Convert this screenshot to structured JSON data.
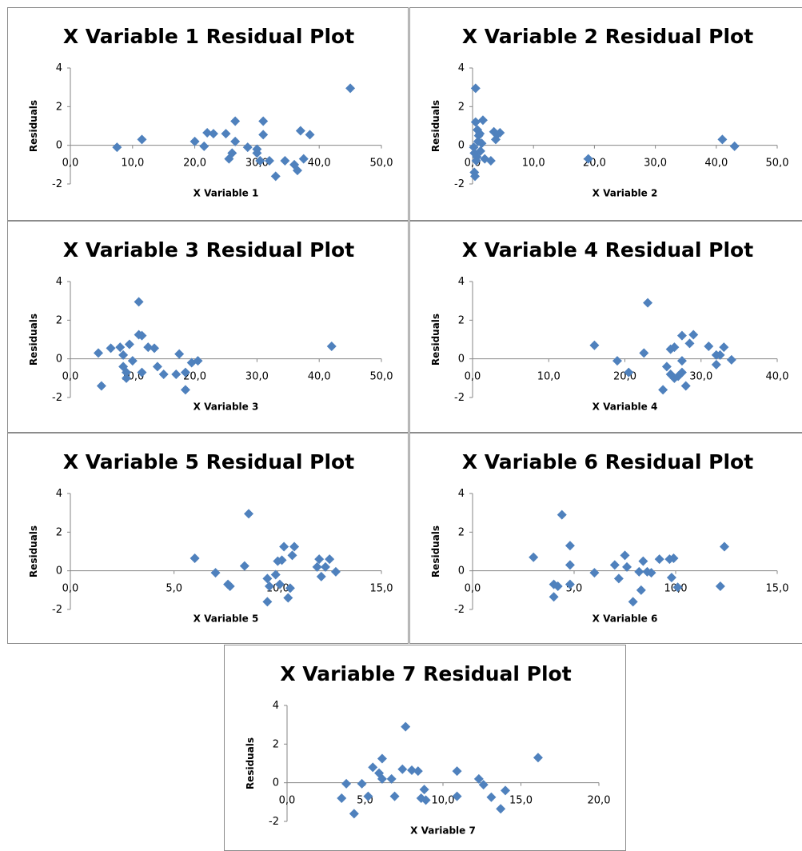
{
  "chart_data": [
    {
      "type": "scatter",
      "title": "X Variable 1  Residual Plot",
      "xlabel": "X Variable  1",
      "ylabel": "Residuals",
      "xlim": [
        0,
        50
      ],
      "ylim": [
        -2,
        4
      ],
      "x_ticks": [
        "0,0",
        "10,0",
        "20,0",
        "30,0",
        "40,0",
        "50,0"
      ],
      "y_ticks": [
        "-2",
        "0",
        "2",
        "4"
      ],
      "grid": false,
      "legend": "none",
      "color": "#4f81bd",
      "points": [
        [
          7.5,
          -0.1
        ],
        [
          11.5,
          0.3
        ],
        [
          20,
          0.2
        ],
        [
          21.5,
          -0.05
        ],
        [
          22,
          0.65
        ],
        [
          23,
          0.6
        ],
        [
          25,
          0.6
        ],
        [
          25.5,
          -0.7
        ],
        [
          26,
          -0.4
        ],
        [
          26.5,
          1.25
        ],
        [
          26.5,
          0.2
        ],
        [
          28.5,
          -0.1
        ],
        [
          30,
          -0.2
        ],
        [
          30,
          -0.4
        ],
        [
          30.5,
          -0.8
        ],
        [
          31,
          1.25
        ],
        [
          31,
          0.55
        ],
        [
          32,
          -0.8
        ],
        [
          33,
          -1.6
        ],
        [
          34.5,
          -0.8
        ],
        [
          36,
          -1.0
        ],
        [
          36.5,
          -1.3
        ],
        [
          37,
          0.75
        ],
        [
          37.5,
          -0.7
        ],
        [
          38.5,
          0.55
        ],
        [
          45,
          2.95
        ]
      ]
    },
    {
      "type": "scatter",
      "title": "X Variable 2  Residual Plot",
      "xlabel": "X Variable  2",
      "ylabel": "Residuals",
      "xlim": [
        0,
        50
      ],
      "ylim": [
        -2,
        4
      ],
      "x_ticks": [
        "0,0",
        "10,0",
        "20,0",
        "30,0",
        "40,0",
        "50,0"
      ],
      "y_ticks": [
        "-2",
        "0",
        "2",
        "4"
      ],
      "grid": false,
      "legend": "none",
      "color": "#4f81bd",
      "points": [
        [
          0.2,
          -0.1
        ],
        [
          0.3,
          -0.4
        ],
        [
          0.3,
          -1.4
        ],
        [
          0.4,
          -1.6
        ],
        [
          0.5,
          1.2
        ],
        [
          0.5,
          2.95
        ],
        [
          0.6,
          -0.8
        ],
        [
          0.7,
          -0.6
        ],
        [
          0.8,
          0.8
        ],
        [
          0.9,
          0.2
        ],
        [
          1,
          0.5
        ],
        [
          1.2,
          0.6
        ],
        [
          1.3,
          -0.3
        ],
        [
          1.5,
          0.1
        ],
        [
          1.7,
          1.3
        ],
        [
          2,
          -0.7
        ],
        [
          3,
          -0.8
        ],
        [
          3.5,
          0.7
        ],
        [
          3.8,
          0.3
        ],
        [
          4,
          0.55
        ],
        [
          4.5,
          0.65
        ],
        [
          19,
          -0.7
        ],
        [
          41,
          0.3
        ],
        [
          43,
          -0.05
        ]
      ]
    },
    {
      "type": "scatter",
      "title": "X Variable 3  Residual Plot",
      "xlabel": "X Variable  3",
      "ylabel": "Residuals",
      "xlim": [
        0,
        50
      ],
      "ylim": [
        -2,
        4
      ],
      "x_ticks": [
        "0,0",
        "10,0",
        "20,0",
        "30,0",
        "40,0",
        "50,0"
      ],
      "y_ticks": [
        "-2",
        "0",
        "2",
        "4"
      ],
      "grid": false,
      "legend": "none",
      "color": "#4f81bd",
      "points": [
        [
          4.5,
          0.3
        ],
        [
          5,
          -1.4
        ],
        [
          6.5,
          0.55
        ],
        [
          8,
          0.6
        ],
        [
          8.5,
          0.2
        ],
        [
          8.5,
          -0.4
        ],
        [
          9,
          -1
        ],
        [
          9,
          -0.7
        ],
        [
          9.5,
          0.75
        ],
        [
          10,
          -0.1
        ],
        [
          11,
          1.25
        ],
        [
          11,
          2.95
        ],
        [
          11.5,
          1.2
        ],
        [
          11.5,
          -0.7
        ],
        [
          12.5,
          0.6
        ],
        [
          13.5,
          0.55
        ],
        [
          14,
          -0.4
        ],
        [
          15,
          -0.8
        ],
        [
          17,
          -0.8
        ],
        [
          17.5,
          0.25
        ],
        [
          18.5,
          -0.7
        ],
        [
          18.5,
          -1.6
        ],
        [
          19.5,
          -0.2
        ],
        [
          20.5,
          -0.1
        ],
        [
          42,
          0.65
        ]
      ]
    },
    {
      "type": "scatter",
      "title": "X Variable 4  Residual Plot",
      "xlabel": "X Variable  4",
      "ylabel": "Residuals",
      "xlim": [
        0,
        40
      ],
      "ylim": [
        -2,
        4
      ],
      "x_ticks": [
        "0,0",
        "10,0",
        "20,0",
        "30,0",
        "40,0"
      ],
      "y_ticks": [
        "-2",
        "0",
        "2",
        "4"
      ],
      "grid": false,
      "legend": "none",
      "color": "#4f81bd",
      "points": [
        [
          16,
          0.7
        ],
        [
          19,
          -0.1
        ],
        [
          20.5,
          -0.7
        ],
        [
          22.5,
          0.3
        ],
        [
          23,
          2.9
        ],
        [
          25,
          -1.6
        ],
        [
          25.5,
          -0.4
        ],
        [
          26,
          -0.8
        ],
        [
          26,
          0.5
        ],
        [
          26.5,
          -1.0
        ],
        [
          26.5,
          0.6
        ],
        [
          27,
          -0.9
        ],
        [
          27.5,
          -0.7
        ],
        [
          27.5,
          -0.1
        ],
        [
          27.5,
          1.2
        ],
        [
          28,
          -1.4
        ],
        [
          28.5,
          0.8
        ],
        [
          29,
          1.25
        ],
        [
          31,
          0.65
        ],
        [
          32,
          0.2
        ],
        [
          32,
          -0.3
        ],
        [
          32.5,
          0.2
        ],
        [
          33,
          0.6
        ],
        [
          34,
          -0.05
        ]
      ]
    },
    {
      "type": "scatter",
      "title": "X Variable 5  Residual Plot",
      "xlabel": "X Variable  5",
      "ylabel": "Residuals",
      "xlim": [
        0,
        15
      ],
      "ylim": [
        -2,
        4
      ],
      "x_ticks": [
        "0,0",
        "5,0",
        "10,0",
        "15,0"
      ],
      "y_ticks": [
        "-2",
        "0",
        "2",
        "4"
      ],
      "grid": false,
      "legend": "none",
      "color": "#4f81bd",
      "points": [
        [
          6,
          0.65
        ],
        [
          7,
          -0.1
        ],
        [
          7.6,
          -0.7
        ],
        [
          7.7,
          -0.8
        ],
        [
          8.4,
          0.25
        ],
        [
          8.6,
          2.95
        ],
        [
          9.5,
          -0.4
        ],
        [
          9.5,
          -1.6
        ],
        [
          9.6,
          -0.8
        ],
        [
          9.9,
          -0.2
        ],
        [
          10,
          0.5
        ],
        [
          10.1,
          -0.7
        ],
        [
          10.2,
          0.55
        ],
        [
          10.3,
          1.25
        ],
        [
          10.5,
          -1.4
        ],
        [
          10.6,
          -0.9
        ],
        [
          10.7,
          0.8
        ],
        [
          10.8,
          1.25
        ],
        [
          11.9,
          0.2
        ],
        [
          12,
          0.6
        ],
        [
          12.1,
          -0.3
        ],
        [
          12.3,
          0.2
        ],
        [
          12.5,
          0.6
        ],
        [
          12.8,
          -0.05
        ]
      ]
    },
    {
      "type": "scatter",
      "title": "X Variable 6  Residual Plot",
      "xlabel": "X Variable  6",
      "ylabel": "Residuals",
      "xlim": [
        0,
        15
      ],
      "ylim": [
        -2,
        4
      ],
      "x_ticks": [
        "0,0",
        "5,0",
        "10,0",
        "15,0"
      ],
      "y_ticks": [
        "-2",
        "0",
        "2",
        "4"
      ],
      "grid": false,
      "legend": "none",
      "color": "#4f81bd",
      "points": [
        [
          3,
          0.7
        ],
        [
          4,
          -0.7
        ],
        [
          4,
          -1.35
        ],
        [
          4.2,
          -0.8
        ],
        [
          4.4,
          2.9
        ],
        [
          4.8,
          1.3
        ],
        [
          4.8,
          0.3
        ],
        [
          4.8,
          -0.7
        ],
        [
          6,
          -0.1
        ],
        [
          7,
          0.3
        ],
        [
          7.2,
          -0.4
        ],
        [
          7.5,
          0.8
        ],
        [
          7.6,
          0.2
        ],
        [
          7.9,
          -1.6
        ],
        [
          8.2,
          -0.05
        ],
        [
          8.3,
          -1.0
        ],
        [
          8.4,
          0.5
        ],
        [
          8.6,
          -0.05
        ],
        [
          8.8,
          -0.1
        ],
        [
          9.2,
          0.6
        ],
        [
          9.7,
          0.6
        ],
        [
          9.9,
          0.65
        ],
        [
          9.8,
          -0.35
        ],
        [
          10.1,
          -0.85
        ],
        [
          12.2,
          -0.8
        ],
        [
          12.4,
          1.25
        ]
      ]
    },
    {
      "type": "scatter",
      "title": "X Variable 7  Residual Plot",
      "xlabel": "X Variable  7",
      "ylabel": "Residuals",
      "xlim": [
        0,
        20
      ],
      "ylim": [
        -2,
        4
      ],
      "x_ticks": [
        "0,0",
        "5,0",
        "10,0",
        "15,0",
        "20,0"
      ],
      "y_ticks": [
        "-2",
        "0",
        "2",
        "4"
      ],
      "grid": false,
      "legend": "none",
      "color": "#4f81bd",
      "points": [
        [
          3.5,
          -0.8
        ],
        [
          3.8,
          -0.05
        ],
        [
          4.3,
          -1.6
        ],
        [
          4.8,
          -0.05
        ],
        [
          5.2,
          -0.7
        ],
        [
          5.5,
          0.8
        ],
        [
          5.9,
          0.5
        ],
        [
          6.1,
          1.25
        ],
        [
          6.1,
          0.2
        ],
        [
          6.7,
          0.2
        ],
        [
          6.9,
          -0.7
        ],
        [
          7.4,
          0.7
        ],
        [
          7.6,
          2.9
        ],
        [
          8,
          0.65
        ],
        [
          8.4,
          0.6
        ],
        [
          8.6,
          -0.8
        ],
        [
          8.8,
          -0.35
        ],
        [
          8.9,
          -0.9
        ],
        [
          10.9,
          0.6
        ],
        [
          10.9,
          -0.7
        ],
        [
          12.3,
          0.2
        ],
        [
          12.6,
          -0.1
        ],
        [
          13.1,
          -0.75
        ],
        [
          13.7,
          -1.35
        ],
        [
          14,
          -0.4
        ],
        [
          16.1,
          1.3
        ]
      ]
    }
  ]
}
